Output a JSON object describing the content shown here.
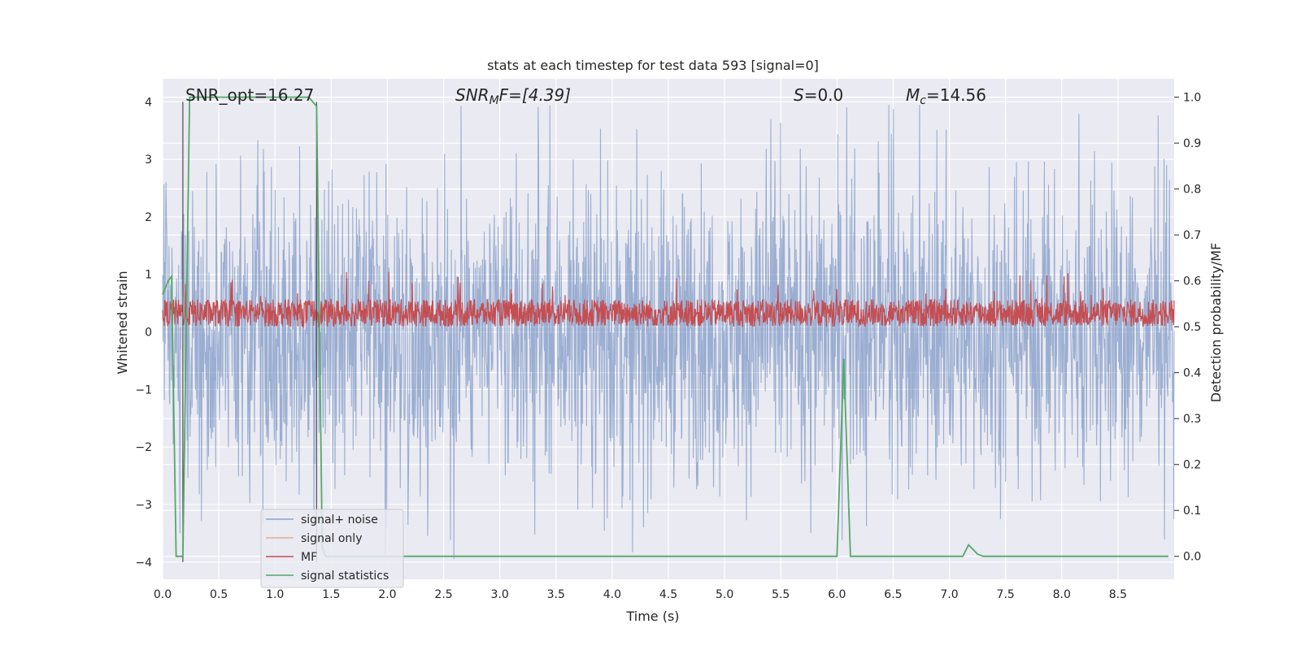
{
  "chart_data": {
    "type": "line",
    "title": "stats at each timestep for test data 593 [signal=0]",
    "xlabel": "Time (s)",
    "ylabel": "Whitened strain",
    "ylabel_right": "Detection probability/MF",
    "xlim": [
      0.0,
      9.0
    ],
    "ylim": [
      -4.3,
      4.4
    ],
    "ylim_right": [
      -0.05,
      1.04
    ],
    "x_ticks": [
      "0.0",
      "0.5",
      "1.0",
      "1.5",
      "2.0",
      "2.5",
      "3.0",
      "3.5",
      "4.0",
      "4.5",
      "5.0",
      "5.5",
      "6.0",
      "6.5",
      "7.0",
      "7.5",
      "8.0",
      "8.5"
    ],
    "y_ticks": [
      "4",
      "3",
      "2",
      "1",
      "0",
      "−1",
      "−2",
      "−3",
      "−4"
    ],
    "y_ticks_right": [
      "1.0",
      "0.9",
      "0.8",
      "0.7",
      "0.6",
      "0.5",
      "0.4",
      "0.3",
      "0.2",
      "0.1",
      "0.0"
    ],
    "grid": true,
    "legend_position": "lower-left",
    "annotations": {
      "snr_opt": "SNR_opt=16.27",
      "snr_mf_prefix": "SNR",
      "snr_mf_sub": "M",
      "snr_mf_suffix": "F=[4.39]",
      "s_var": "S",
      "s_value": "=0.0",
      "mc_var": "M",
      "mc_sub": "c",
      "mc_value": "=14.56"
    },
    "series": [
      {
        "name": "signal+ noise",
        "color": "#4c72b0",
        "axis": "left",
        "kind": "noise",
        "center": 0.0,
        "typical_amplitude": 1.6,
        "max_amplitude": 4.0
      },
      {
        "name": "signal only",
        "color": "#dd8452",
        "axis": "left",
        "kind": "flat",
        "values": []
      },
      {
        "name": "MF",
        "color": "#c44e52",
        "axis": "right",
        "kind": "noise",
        "center": 0.53,
        "range": [
          0.5,
          0.62
        ]
      },
      {
        "name": "signal statistics",
        "color": "#55a868",
        "axis": "right",
        "kind": "line",
        "x": [
          0.0,
          0.05,
          0.08,
          0.12,
          0.18,
          0.24,
          0.26,
          1.3,
          1.37,
          1.42,
          1.45,
          6.0,
          6.06,
          6.12,
          6.2,
          7.12,
          7.17,
          7.25,
          7.3,
          8.95
        ],
        "values": [
          0.57,
          0.6,
          0.61,
          0.0,
          0.0,
          1.0,
          1.0,
          1.0,
          0.98,
          0.02,
          0.0,
          0.0,
          0.43,
          0.0,
          0.0,
          0.0,
          0.025,
          0.005,
          0.0,
          0.0
        ]
      }
    ],
    "vertical_markers": [
      0.18,
      1.37
    ]
  }
}
